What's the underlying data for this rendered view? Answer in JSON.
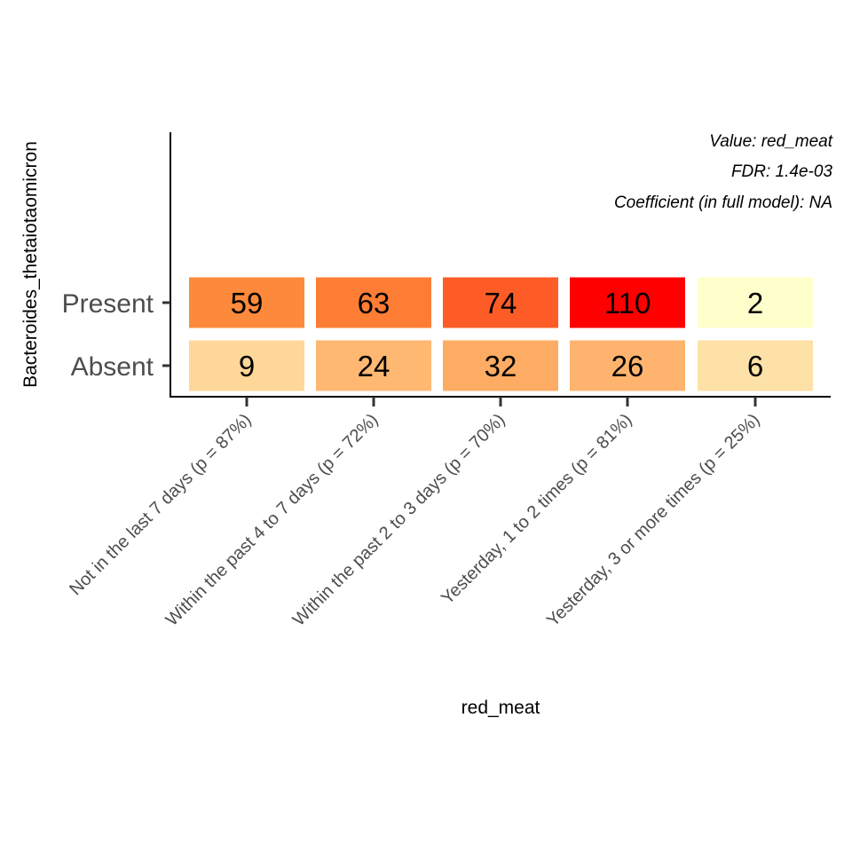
{
  "chart_data": {
    "type": "heatmap",
    "xlabel": "red_meat",
    "ylabel": "Bacteroides_thetaiotaomicron",
    "categories": [
      "Not in the last 7 days (p = 87%)",
      "Within the past 4 to 7 days (p = 72%)",
      "Within the past 2 to 3 days (p = 70%)",
      "Yesterday, 1 to 2 times (p = 81%)",
      "Yesterday, 3 or more times (p = 25%)"
    ],
    "rows": [
      "Present",
      "Absent"
    ],
    "values": [
      [
        59,
        63,
        74,
        110,
        2
      ],
      [
        9,
        24,
        32,
        26,
        6
      ]
    ],
    "annotations": [
      "Value: red_meat",
      "FDR: 1.4e-03",
      "Coefficient (in full model): NA"
    ],
    "color_scale": {
      "low": "#ffffcc",
      "mid": "#fd8d3c",
      "high": "#ff0000",
      "min": 2,
      "max": 110
    },
    "grid": false,
    "legend": "none"
  }
}
